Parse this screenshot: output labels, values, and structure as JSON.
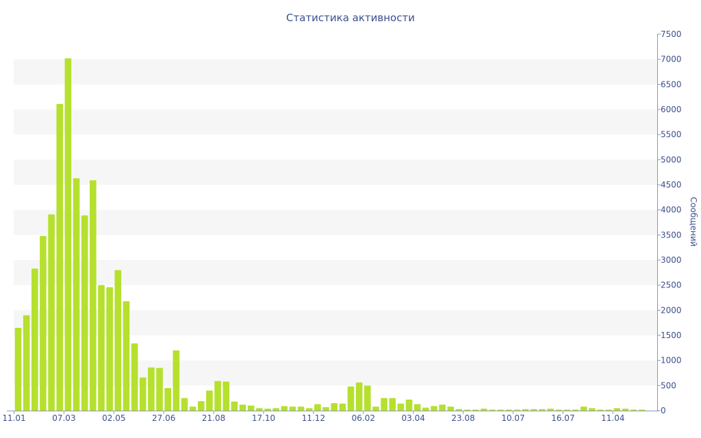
{
  "colors": {
    "bar": "#b5e02e",
    "band": "#f6f6f6",
    "text": "#3b4f8c",
    "axis": "#8a96b8"
  },
  "chart_data": {
    "type": "bar",
    "title": "Статистика активности",
    "xlabel": "",
    "ylabel": "Сообщений",
    "y_axis_side": "right",
    "ylim": [
      0,
      7500
    ],
    "yticks": [
      0,
      500,
      1000,
      1500,
      2000,
      2500,
      3000,
      3500,
      4000,
      4500,
      5000,
      5500,
      6000,
      6500,
      7000,
      7500
    ],
    "grid": "alternating horizontal bands",
    "x_tick_labels": [
      {
        "index": 0,
        "label": "11.01"
      },
      {
        "index": 6,
        "label": "07.03"
      },
      {
        "index": 12,
        "label": "02.05"
      },
      {
        "index": 18,
        "label": "27.06"
      },
      {
        "index": 24,
        "label": "21.08"
      },
      {
        "index": 30,
        "label": "17.10"
      },
      {
        "index": 36,
        "label": "11.12"
      },
      {
        "index": 42,
        "label": "06.02"
      },
      {
        "index": 48,
        "label": "03.04"
      },
      {
        "index": 54,
        "label": "23.08"
      },
      {
        "index": 60,
        "label": "10.07"
      },
      {
        "index": 66,
        "label": "16.07"
      },
      {
        "index": 72,
        "label": "11.04"
      }
    ],
    "values": [
      1650,
      1900,
      2830,
      3480,
      3910,
      6110,
      7020,
      4630,
      3890,
      4590,
      2500,
      2460,
      2800,
      2180,
      1340,
      660,
      860,
      850,
      450,
      1200,
      250,
      80,
      190,
      400,
      590,
      580,
      180,
      120,
      100,
      50,
      40,
      50,
      90,
      80,
      80,
      50,
      130,
      70,
      150,
      140,
      480,
      560,
      500,
      80,
      250,
      250,
      140,
      220,
      130,
      60,
      90,
      120,
      80,
      30,
      20,
      20,
      40,
      20,
      20,
      20,
      20,
      30,
      30,
      30,
      40,
      20,
      20,
      20,
      80,
      50,
      20,
      20,
      50,
      40,
      20,
      20
    ]
  }
}
